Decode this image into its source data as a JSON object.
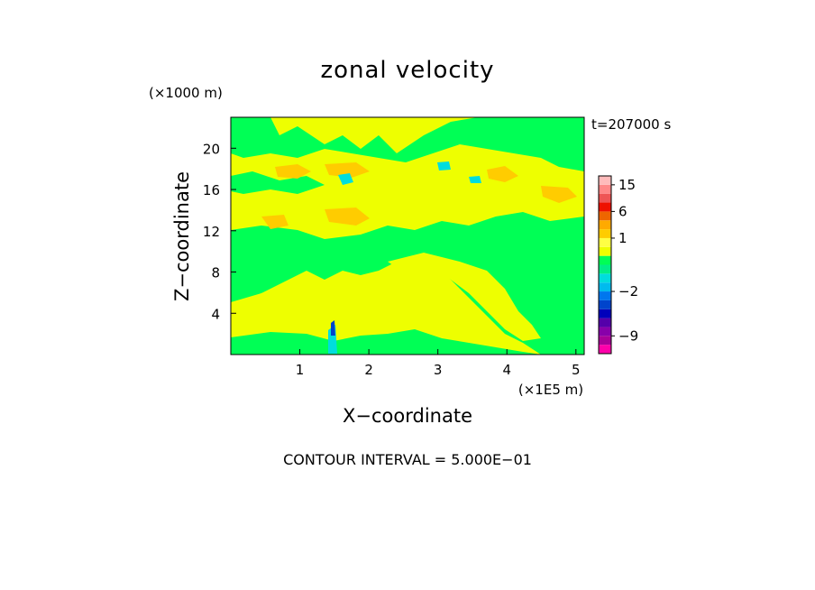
{
  "chart_data": {
    "type": "heatmap",
    "title": "zonal velocity",
    "time_label": "t=207000 s",
    "xlabel": "X−coordinate",
    "ylabel": "Z−coordinate",
    "x_unit": "(×1E5 m)",
    "y_unit": "(×1000 m)",
    "xlim": [
      0,
      5.12
    ],
    "ylim": [
      0,
      23
    ],
    "x_ticks": [
      1,
      2,
      3,
      4,
      5
    ],
    "y_ticks": [
      4,
      8,
      12,
      16,
      20
    ],
    "contour_interval_label": "CONTOUR INTERVAL = 5.000E−01",
    "colorbar": {
      "levels": [
        -12,
        -10.5,
        -9,
        -7.5,
        -6,
        -4.5,
        -3,
        -2,
        -1.5,
        -1,
        -0.5,
        0,
        0.5,
        1,
        1.5,
        3,
        6,
        9,
        12,
        15,
        18
      ],
      "colors": [
        "#ff00aa",
        "#aa0099",
        "#8800aa",
        "#5500aa",
        "#0000bb",
        "#0044cc",
        "#0077ee",
        "#00bbee",
        "#00dddd",
        "#00ee88",
        "#00ff55",
        "#eeff00",
        "#ffff44",
        "#ffcc00",
        "#ffaa00",
        "#ee6600",
        "#ee1100",
        "#ee5555",
        "#ff8888",
        "#ffbbbb"
      ],
      "tick_labels": [
        "15",
        "6",
        "1",
        "−2",
        "−9"
      ],
      "tick_values": [
        15,
        6,
        1,
        -2,
        -9
      ]
    }
  }
}
